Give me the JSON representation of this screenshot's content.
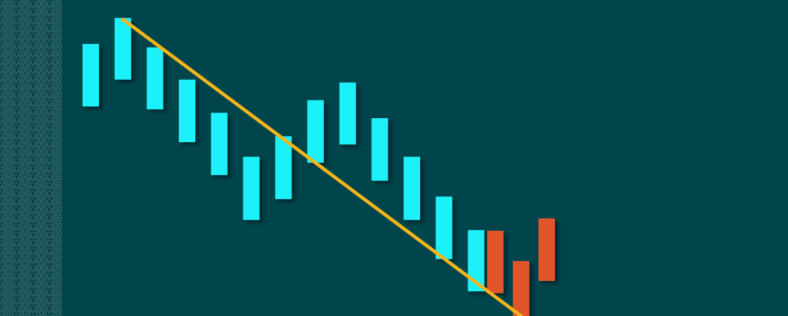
{
  "chart_data": {
    "type": "bar",
    "title": "",
    "xlabel": "",
    "ylabel": "",
    "xlim": [
      0.5,
      14.5
    ],
    "ylim": [
      0,
      100
    ],
    "grid": false,
    "legend": "none",
    "series": [
      {
        "values": [
          {
            "x": 1,
            "low": 66.3,
            "high": 86.1
          },
          {
            "x": 2,
            "low": 74.8,
            "high": 94.3
          },
          {
            "x": 3,
            "low": 65.4,
            "high": 85.0
          },
          {
            "x": 4,
            "low": 55.0,
            "high": 74.8
          },
          {
            "x": 5,
            "low": 44.6,
            "high": 64.3
          },
          {
            "x": 6,
            "low": 30.4,
            "high": 50.4
          },
          {
            "x": 7,
            "low": 37.0,
            "high": 56.9
          },
          {
            "x": 8,
            "low": 48.5,
            "high": 68.3
          },
          {
            "x": 9,
            "low": 54.3,
            "high": 73.9
          },
          {
            "x": 10,
            "low": 42.8,
            "high": 62.6
          },
          {
            "x": 11,
            "low": 30.4,
            "high": 50.4
          },
          {
            "x": 12,
            "low": 18.0,
            "high": 37.8
          },
          {
            "x": 13,
            "low": 7.8,
            "high": 27.2
          }
        ],
        "color": "#1df0f8"
      },
      {
        "values": [
          {
            "x": 13.6,
            "low": 7.2,
            "high": 27.0
          },
          {
            "x": 14.4,
            "low": 0.0,
            "high": 17.4
          },
          {
            "x": 15.2,
            "low": 11.1,
            "high": 30.9
          }
        ],
        "color": "#e0562a"
      }
    ],
    "trendline": {
      "from": {
        "x": 2,
        "y": 93.9
      },
      "to": {
        "x": 14.4,
        "y": 0.0
      },
      "color": "#f2b51b"
    }
  },
  "colors": {
    "background": "#00454c",
    "pattern": "#1f5a60",
    "shadow": "#002a2f"
  }
}
